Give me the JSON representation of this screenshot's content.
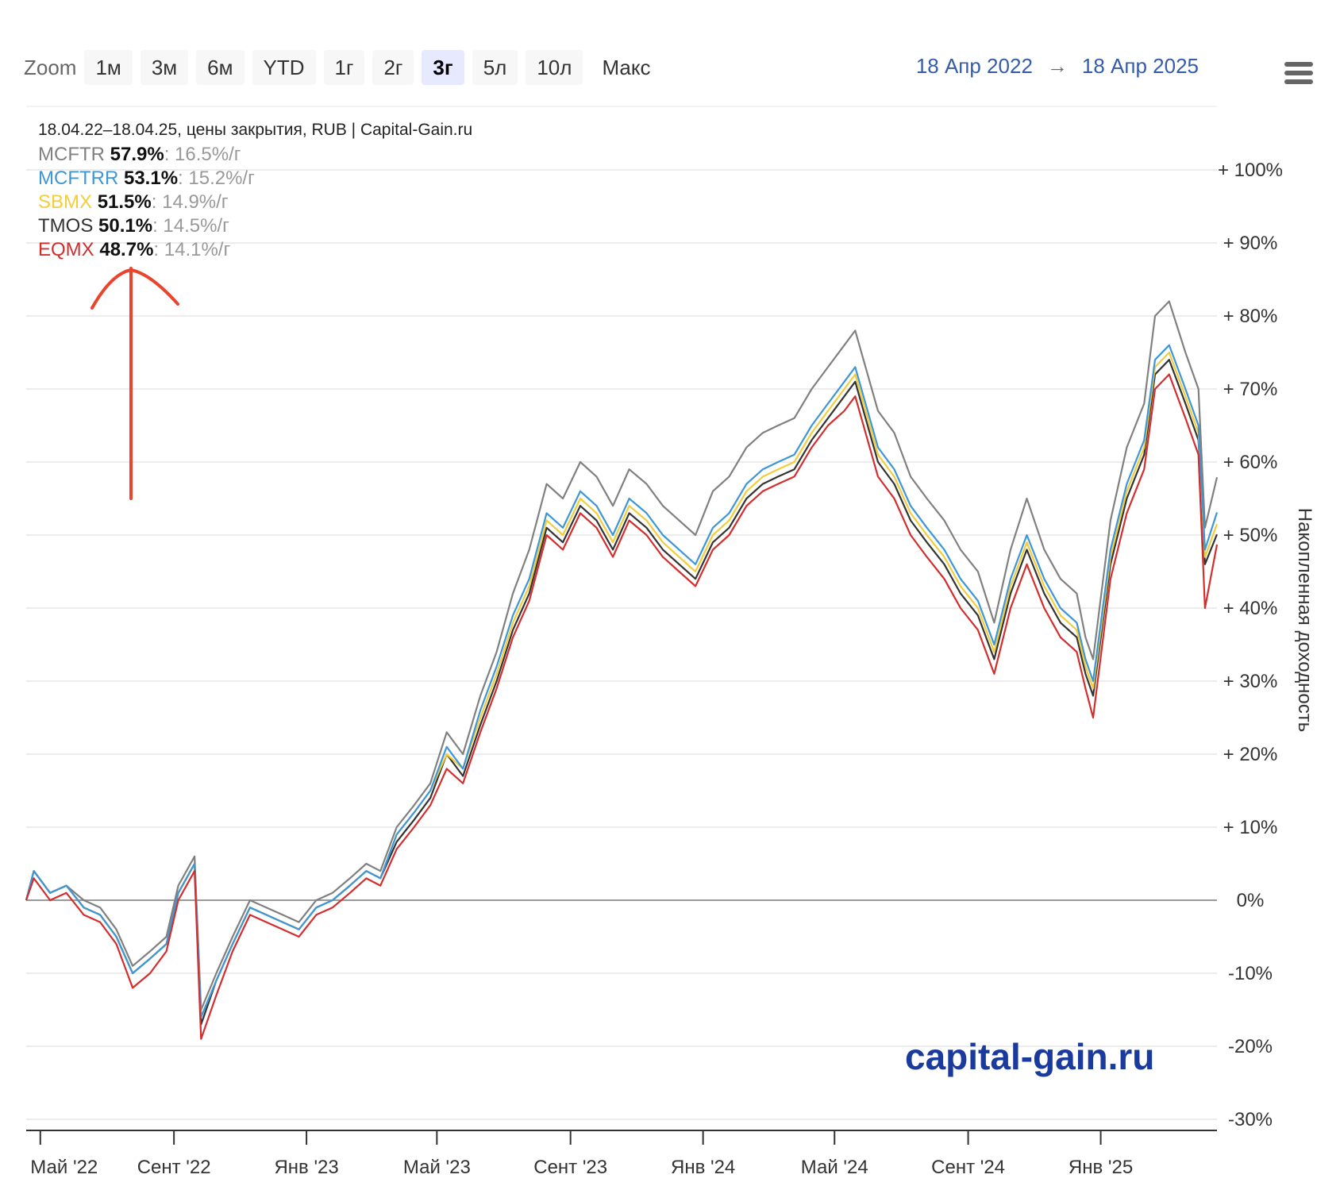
{
  "toolbar": {
    "zoom_label": "Zoom",
    "buttons": [
      "1м",
      "3м",
      "6м",
      "YTD",
      "1г",
      "2г",
      "3г",
      "5л",
      "10л",
      "Макс"
    ],
    "active": "3г",
    "range_from": "18 Апр 2022",
    "range_arrow": "→",
    "range_to": "18 Апр 2025"
  },
  "legend": {
    "caption": "18.04.22–18.04.25, цены закрытия, RUB | Capital-Gain.ru",
    "items": [
      {
        "name": "MCFTR",
        "total": "57.9%",
        "annual": ": 16.5%/г",
        "color": "#808080"
      },
      {
        "name": "MCFTRR",
        "total": "53.1%",
        "annual": ": 15.2%/г",
        "color": "#3d96d8"
      },
      {
        "name": "SBMX",
        "total": "51.5%",
        "annual": ": 14.9%/г",
        "color": "#f2cd3c"
      },
      {
        "name": "TMOS",
        "total": "50.1%",
        "annual": ": 14.5%/г",
        "color": "#333333"
      },
      {
        "name": "EQMX",
        "total": "48.7%",
        "annual": ": 14.1%/г",
        "color": "#d42d2d"
      }
    ]
  },
  "watermark": "capital-gain.ru",
  "annotation_color": "#e8452c",
  "chart_data": {
    "type": "line",
    "ylabel": "Накопленная доходность",
    "ylim": [
      -30,
      100
    ],
    "yticks": [
      100,
      90,
      80,
      70,
      60,
      50,
      40,
      30,
      20,
      10,
      0,
      -10,
      -20,
      -30
    ],
    "ytick_labels": [
      "+ 100%",
      "+ 90%",
      "+ 80%",
      "+ 70%",
      "+ 60%",
      "+ 50%",
      "+ 40%",
      "+ 30%",
      "+ 20%",
      "+ 10%",
      "0%",
      "-10%",
      "-20%",
      "-30%"
    ],
    "xlim": [
      "2022-04-18",
      "2025-04-18"
    ],
    "xticks": [
      "2022-05-01",
      "2022-09-01",
      "2023-01-01",
      "2023-05-01",
      "2023-09-01",
      "2024-01-01",
      "2024-05-01",
      "2024-09-01",
      "2025-01-01"
    ],
    "xtick_labels": [
      "Май '22",
      "Сент '22",
      "Янв '23",
      "Май '23",
      "Сент '23",
      "Янв '24",
      "Май '24",
      "Сент '24",
      "Янв '25"
    ],
    "x": [
      "2022-04-18",
      "2022-04-25",
      "2022-05-10",
      "2022-05-25",
      "2022-06-10",
      "2022-06-25",
      "2022-07-10",
      "2022-07-25",
      "2022-08-10",
      "2022-08-25",
      "2022-09-05",
      "2022-09-20",
      "2022-09-26",
      "2022-10-10",
      "2022-10-25",
      "2022-11-10",
      "2022-11-25",
      "2022-12-10",
      "2022-12-25",
      "2023-01-10",
      "2023-01-25",
      "2023-02-10",
      "2023-02-25",
      "2023-03-10",
      "2023-03-25",
      "2023-04-10",
      "2023-04-25",
      "2023-05-10",
      "2023-05-25",
      "2023-06-10",
      "2023-06-25",
      "2023-07-10",
      "2023-07-25",
      "2023-08-10",
      "2023-08-25",
      "2023-09-10",
      "2023-09-25",
      "2023-10-10",
      "2023-10-25",
      "2023-11-10",
      "2023-11-25",
      "2023-12-10",
      "2023-12-25",
      "2024-01-10",
      "2024-01-25",
      "2024-02-10",
      "2024-02-25",
      "2024-03-10",
      "2024-03-25",
      "2024-04-10",
      "2024-04-25",
      "2024-05-10",
      "2024-05-20",
      "2024-06-10",
      "2024-06-25",
      "2024-07-10",
      "2024-07-25",
      "2024-08-10",
      "2024-08-25",
      "2024-09-10",
      "2024-09-25",
      "2024-10-10",
      "2024-10-25",
      "2024-11-10",
      "2024-11-25",
      "2024-12-10",
      "2024-12-18",
      "2024-12-25",
      "2025-01-10",
      "2025-01-25",
      "2025-02-10",
      "2025-02-20",
      "2025-03-05",
      "2025-03-20",
      "2025-04-01",
      "2025-04-07",
      "2025-04-18"
    ],
    "series": [
      {
        "name": "MCFTR",
        "color": "#808080",
        "values": [
          0,
          4,
          1,
          2,
          0,
          -1,
          -4,
          -9,
          -7,
          -5,
          2,
          6,
          -15,
          -10,
          -5,
          0,
          -1,
          -2,
          -3,
          0,
          1,
          3,
          5,
          4,
          10,
          13,
          16,
          23,
          20,
          28,
          34,
          42,
          48,
          57,
          55,
          60,
          58,
          54,
          59,
          57,
          54,
          52,
          50,
          56,
          58,
          62,
          64,
          65,
          66,
          70,
          73,
          76,
          78,
          67,
          64,
          58,
          55,
          52,
          48,
          45,
          38,
          48,
          55,
          48,
          44,
          42,
          36,
          33,
          52,
          62,
          68,
          80,
          82,
          75,
          70,
          51,
          57.9
        ]
      },
      {
        "name": "MCFTRR",
        "color": "#3d96d8",
        "values": [
          0,
          4,
          1,
          2,
          -1,
          -2,
          -5,
          -10,
          -8,
          -6,
          1,
          5,
          -16,
          -11,
          -6,
          -1,
          -2,
          -3,
          -4,
          -1,
          0,
          2,
          4,
          3,
          9,
          12,
          15,
          21,
          18,
          26,
          32,
          39,
          44,
          53,
          51,
          56,
          54,
          50,
          55,
          53,
          50,
          48,
          46,
          51,
          53,
          57,
          59,
          60,
          61,
          65,
          68,
          71,
          73,
          62,
          59,
          54,
          51,
          48,
          44,
          41,
          35,
          44,
          50,
          44,
          40,
          38,
          33,
          30,
          48,
          57,
          63,
          74,
          76,
          70,
          65,
          48,
          53.1
        ]
      },
      {
        "name": "SBMX",
        "color": "#f2cd3c",
        "values": [
          0,
          4,
          1,
          2,
          -1,
          -2,
          -5,
          -10,
          -8,
          -6,
          1,
          5,
          -16,
          -11,
          -6,
          -1,
          -2,
          -3,
          -4,
          -1,
          0,
          2,
          4,
          3,
          9,
          12,
          15,
          20,
          18,
          25,
          31,
          38,
          43,
          52,
          50,
          55,
          53,
          49,
          54,
          52,
          49,
          47,
          45,
          50,
          52,
          56,
          58,
          59,
          60,
          64,
          67,
          70,
          72,
          61,
          58,
          53,
          50,
          47,
          43,
          40,
          34,
          43,
          49,
          43,
          39,
          37,
          32,
          29,
          47,
          56,
          62,
          73,
          75,
          69,
          64,
          47,
          51.5
        ]
      },
      {
        "name": "TMOS",
        "color": "#333333",
        "values": [
          0,
          4,
          1,
          2,
          -1,
          -2,
          -5,
          -10,
          -8,
          -6,
          1,
          5,
          -17,
          -11,
          -6,
          -1,
          -2,
          -3,
          -4,
          -1,
          0,
          2,
          4,
          3,
          8,
          11,
          14,
          20,
          17,
          24,
          30,
          37,
          42,
          51,
          49,
          54,
          52,
          48,
          53,
          51,
          48,
          46,
          44,
          49,
          51,
          55,
          57,
          58,
          59,
          63,
          66,
          69,
          71,
          60,
          57,
          52,
          49,
          46,
          42,
          39,
          33,
          42,
          48,
          42,
          38,
          36,
          31,
          28,
          46,
          55,
          61,
          72,
          74,
          68,
          63,
          46,
          50.1
        ]
      },
      {
        "name": "EQMX",
        "color": "#d42d2d",
        "values": [
          0,
          3,
          0,
          1,
          -2,
          -3,
          -6,
          -12,
          -10,
          -7,
          0,
          4,
          -19,
          -13,
          -7,
          -2,
          -3,
          -4,
          -5,
          -2,
          -1,
          1,
          3,
          2,
          7,
          10,
          13,
          18,
          16,
          23,
          29,
          36,
          41,
          50,
          48,
          53,
          51,
          47,
          52,
          50,
          47,
          45,
          43,
          48,
          50,
          54,
          56,
          57,
          58,
          62,
          65,
          67,
          69,
          58,
          55,
          50,
          47,
          44,
          40,
          37,
          31,
          40,
          46,
          40,
          36,
          34,
          29,
          25,
          44,
          53,
          59,
          70,
          72,
          66,
          61,
          40,
          48.7
        ]
      }
    ]
  }
}
